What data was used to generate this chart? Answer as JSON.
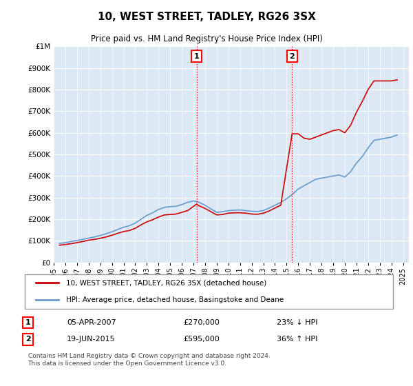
{
  "title": "10, WEST STREET, TADLEY, RG26 3SX",
  "subtitle": "Price paid vs. HM Land Registry's House Price Index (HPI)",
  "ylim": [
    0,
    1000000
  ],
  "yticks": [
    0,
    100000,
    200000,
    300000,
    400000,
    500000,
    600000,
    700000,
    800000,
    900000,
    1000000
  ],
  "ytick_labels": [
    "£0",
    "£100K",
    "£200K",
    "£300K",
    "£400K",
    "£500K",
    "£600K",
    "£700K",
    "£800K",
    "£900K",
    "£1M"
  ],
  "hpi_color": "#6699cc",
  "price_color": "#cc0000",
  "bg_color": "#dce9f5",
  "transaction1": {
    "date": "05-APR-2007",
    "price": 270000,
    "label": "1",
    "pct": "23% ↓ HPI"
  },
  "transaction2": {
    "date": "19-JUN-2015",
    "price": 595000,
    "label": "2",
    "pct": "36% ↑ HPI"
  },
  "legend_label1": "10, WEST STREET, TADLEY, RG26 3SX (detached house)",
  "legend_label2": "HPI: Average price, detached house, Basingstoke and Deane",
  "footnote": "Contains HM Land Registry data © Crown copyright and database right 2024.\nThis data is licensed under the Open Government Licence v3.0.",
  "hpi_x": [
    1995.5,
    1996,
    1996.5,
    1997,
    1997.5,
    1998,
    1998.5,
    1999,
    1999.5,
    2000,
    2000.5,
    2001,
    2001.5,
    2002,
    2002.5,
    2003,
    2003.5,
    2004,
    2004.5,
    2005,
    2005.5,
    2006,
    2006.5,
    2007,
    2007.5,
    2008,
    2008.5,
    2009,
    2009.5,
    2010,
    2010.5,
    2011,
    2011.5,
    2012,
    2012.5,
    2013,
    2013.5,
    2014,
    2014.5,
    2015,
    2015.5,
    2016,
    2016.5,
    2017,
    2017.5,
    2018,
    2018.5,
    2019,
    2019.5,
    2020,
    2020.5,
    2021,
    2021.5,
    2022,
    2022.5,
    2023,
    2023.5,
    2024,
    2024.5
  ],
  "hpi_y": [
    88000,
    92000,
    97000,
    102000,
    107000,
    113000,
    118000,
    125000,
    133000,
    142000,
    153000,
    163000,
    170000,
    182000,
    200000,
    218000,
    230000,
    245000,
    255000,
    258000,
    260000,
    268000,
    278000,
    285000,
    278000,
    265000,
    248000,
    232000,
    235000,
    240000,
    242000,
    243000,
    240000,
    237000,
    236000,
    240000,
    252000,
    265000,
    278000,
    295000,
    315000,
    340000,
    355000,
    370000,
    385000,
    390000,
    395000,
    400000,
    405000,
    395000,
    420000,
    460000,
    490000,
    530000,
    565000,
    570000,
    575000,
    580000,
    590000
  ],
  "price_x": [
    1995.5,
    1996,
    1996.5,
    1997,
    1997.5,
    1998,
    1998.5,
    1999,
    1999.5,
    2000,
    2000.5,
    2001,
    2001.5,
    2002,
    2002.5,
    2003,
    2003.5,
    2004,
    2004.5,
    2005,
    2005.5,
    2006,
    2006.5,
    2007.27,
    2007.5,
    2008,
    2008.5,
    2009,
    2009.5,
    2010,
    2010.5,
    2011,
    2011.5,
    2012,
    2012.5,
    2013,
    2013.5,
    2014,
    2014.5,
    2015.47,
    2015.5,
    2016,
    2016.5,
    2017,
    2017.5,
    2018,
    2018.5,
    2019,
    2019.5,
    2020,
    2020.5,
    2021,
    2021.5,
    2022,
    2022.5,
    2023,
    2023.5,
    2024,
    2024.5
  ],
  "price_y": [
    80000,
    83000,
    87000,
    92000,
    97000,
    103000,
    107000,
    112000,
    118000,
    126000,
    135000,
    143000,
    148000,
    158000,
    174000,
    188000,
    198000,
    210000,
    220000,
    222000,
    224000,
    232000,
    240000,
    270000,
    262000,
    250000,
    235000,
    220000,
    222000,
    228000,
    230000,
    230000,
    228000,
    224000,
    223000,
    228000,
    238000,
    252000,
    265000,
    595000,
    595000,
    595000,
    575000,
    570000,
    580000,
    590000,
    600000,
    610000,
    615000,
    600000,
    635000,
    695000,
    745000,
    800000,
    840000,
    840000,
    840000,
    840000,
    845000
  ],
  "xtick_years": [
    1995,
    1996,
    1997,
    1998,
    1999,
    2000,
    2001,
    2002,
    2003,
    2004,
    2005,
    2006,
    2007,
    2008,
    2009,
    2010,
    2011,
    2012,
    2013,
    2014,
    2015,
    2016,
    2017,
    2018,
    2019,
    2020,
    2021,
    2022,
    2023,
    2024,
    2025
  ]
}
